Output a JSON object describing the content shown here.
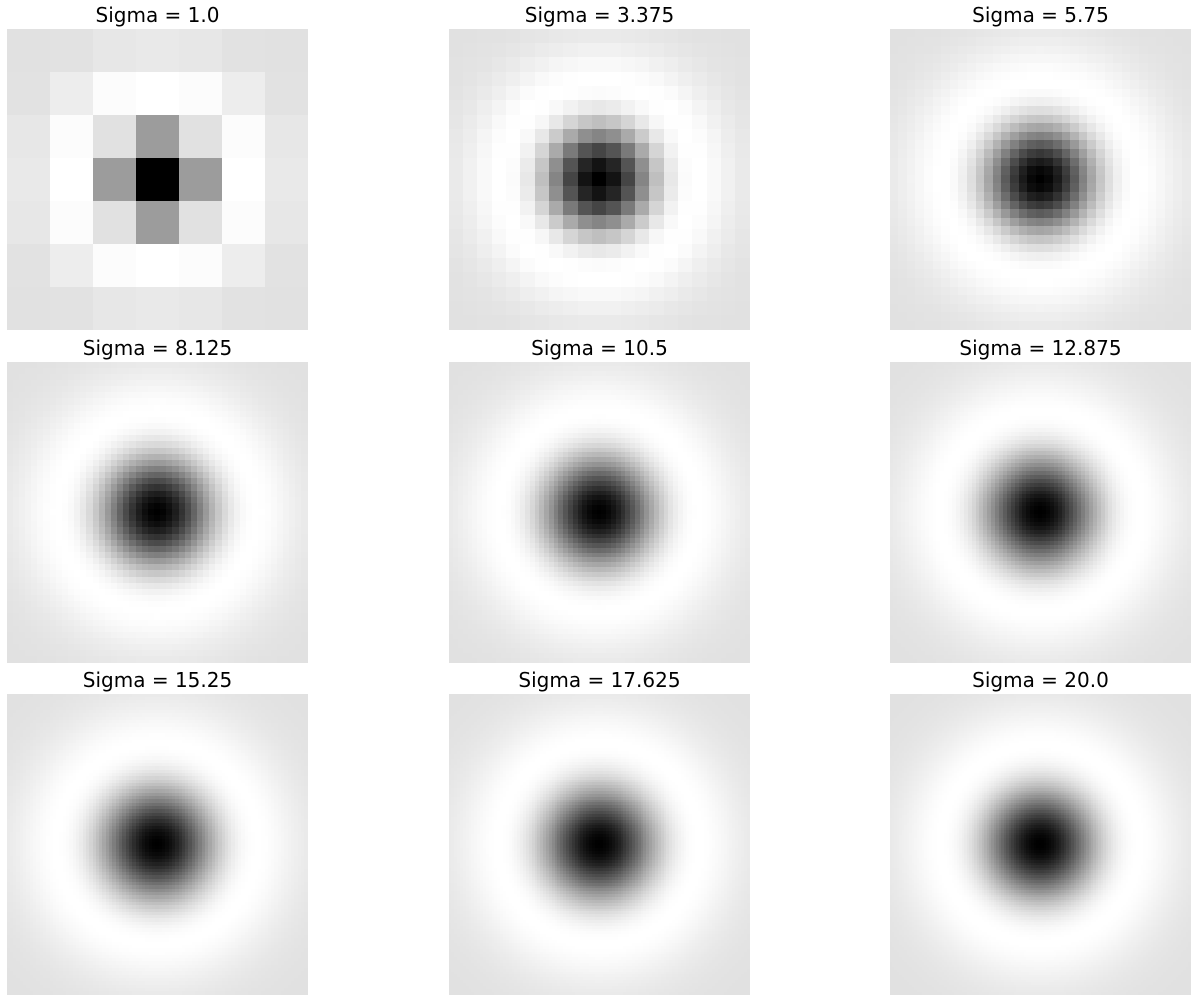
{
  "chart_data": [
    {
      "type": "heatmap",
      "title": "Sigma = 1.0",
      "sigma": 1.0,
      "grid_cells": 7,
      "colormap": "gray_r",
      "axes": "off"
    },
    {
      "type": "heatmap",
      "title": "Sigma = 3.375",
      "sigma": 3.375,
      "grid_cells": 21,
      "colormap": "gray_r",
      "axes": "off"
    },
    {
      "type": "heatmap",
      "title": "Sigma = 5.75",
      "sigma": 5.75,
      "grid_cells": 35,
      "colormap": "gray_r",
      "axes": "off"
    },
    {
      "type": "heatmap",
      "title": "Sigma = 8.125",
      "sigma": 8.125,
      "grid_cells": 49,
      "colormap": "gray_r",
      "axes": "off"
    },
    {
      "type": "heatmap",
      "title": "Sigma = 10.5",
      "sigma": 10.5,
      "grid_cells": 63,
      "colormap": "gray_r",
      "axes": "off"
    },
    {
      "type": "heatmap",
      "title": "Sigma = 12.875",
      "sigma": 12.875,
      "grid_cells": 77,
      "colormap": "gray_r",
      "axes": "off"
    },
    {
      "type": "heatmap",
      "title": "Sigma = 15.25",
      "sigma": 15.25,
      "grid_cells": 91,
      "colormap": "gray_r",
      "axes": "off"
    },
    {
      "type": "heatmap",
      "title": "Sigma = 17.625",
      "sigma": 17.625,
      "grid_cells": 105,
      "colormap": "gray_r",
      "axes": "off"
    },
    {
      "type": "heatmap",
      "title": "Sigma = 20.0",
      "sigma": 20.0,
      "grid_cells": 121,
      "colormap": "gray_r",
      "axes": "off"
    }
  ]
}
